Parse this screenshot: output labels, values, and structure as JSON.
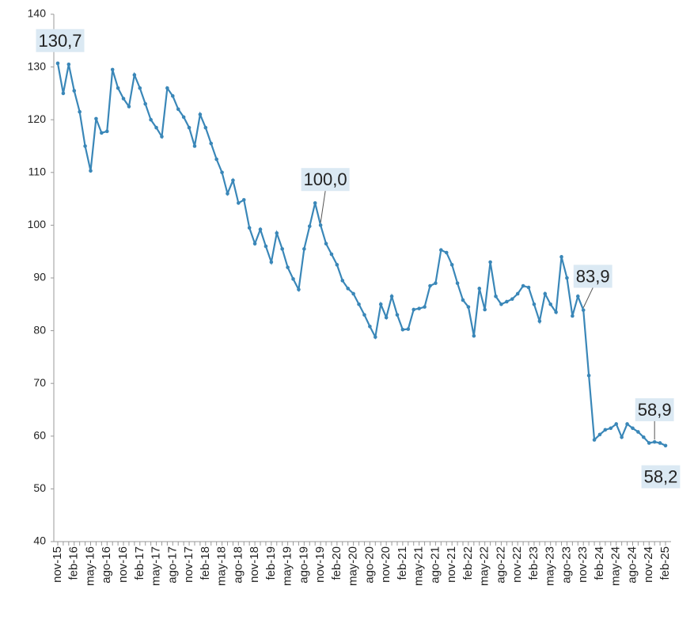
{
  "chart_data": {
    "type": "line",
    "categories": [
      "nov-15",
      null,
      null,
      "feb-16",
      null,
      null,
      "may-16",
      null,
      null,
      "ago-16",
      null,
      null,
      "nov-16",
      null,
      null,
      "feb-17",
      null,
      null,
      "may-17",
      null,
      null,
      "ago-17",
      null,
      null,
      "nov-17",
      null,
      null,
      "feb-18",
      null,
      null,
      "may-18",
      null,
      null,
      "ago-18",
      null,
      null,
      "nov-18",
      null,
      null,
      "feb-19",
      null,
      null,
      "may-19",
      null,
      null,
      "ago-19",
      null,
      null,
      "nov-19",
      null,
      null,
      "feb-20",
      null,
      null,
      "may-20",
      null,
      null,
      "ago-20",
      null,
      null,
      "nov-20",
      null,
      null,
      "feb-21",
      null,
      null,
      "may-21",
      null,
      null,
      "ago-21",
      null,
      null,
      "nov-21",
      null,
      null,
      "feb-22",
      null,
      null,
      "may-22",
      null,
      null,
      "ago-22",
      null,
      null,
      "nov-22",
      null,
      null,
      "feb-23",
      null,
      null,
      "may-23",
      null,
      null,
      "ago-23",
      null,
      null,
      "nov-23",
      null,
      null,
      "feb-24",
      null,
      null,
      "may-24",
      null,
      null,
      "ago-24",
      null,
      null,
      "nov-24",
      null,
      null,
      "feb-25"
    ],
    "series": [
      {
        "color": "#3a87b8",
        "values": [
          130.7,
          125,
          130.5,
          125.5,
          121.5,
          115,
          110.3,
          120.2,
          117.5,
          117.8,
          129.5,
          126,
          124,
          122.5,
          128.5,
          126,
          123,
          120,
          118.5,
          116.8,
          126,
          124.5,
          122,
          120.5,
          118.5,
          115,
          121,
          118.5,
          115.5,
          112.5,
          110,
          106,
          108.5,
          104.2,
          104.8,
          99.5,
          96.5,
          99.2,
          96,
          93,
          98.5,
          95.5,
          92,
          89.8,
          87.8,
          95.5,
          99.8,
          104.2,
          100.0,
          96.5,
          94.5,
          92.5,
          89.5,
          88,
          87,
          85,
          83,
          80.8,
          78.8,
          85,
          82.5,
          86.5,
          83,
          80.2,
          80.3,
          84,
          84.2,
          84.5,
          88.5,
          89,
          95.3,
          94.8,
          92.5,
          89,
          85.8,
          84.5,
          79,
          88,
          84,
          93,
          86.5,
          85,
          85.5,
          86,
          87,
          88.5,
          88.2,
          85,
          81.8,
          87,
          85,
          83.5,
          94,
          90,
          82.8,
          86.5,
          83.9,
          71.5,
          59.3,
          60.3,
          61.2,
          61.5,
          62.3,
          59.8,
          62.3,
          61.5,
          60.8,
          59.8,
          58.7,
          58.9,
          58.7,
          58.2
        ],
        "value_labels": [
          "130,7",
          null,
          null,
          null,
          null,
          null,
          null,
          null,
          null,
          null,
          null,
          null,
          null,
          null,
          null,
          null,
          null,
          null,
          null,
          null,
          null,
          null,
          null,
          null,
          null,
          null,
          null,
          null,
          null,
          null,
          null,
          null,
          null,
          null,
          null,
          null,
          null,
          null,
          null,
          null,
          null,
          null,
          null,
          null,
          null,
          null,
          null,
          null,
          "100,0",
          null,
          null,
          null,
          null,
          null,
          null,
          null,
          null,
          null,
          null,
          null,
          null,
          null,
          null,
          null,
          null,
          null,
          null,
          null,
          null,
          null,
          null,
          null,
          null,
          null,
          null,
          null,
          null,
          null,
          null,
          null,
          null,
          null,
          null,
          null,
          null,
          null,
          null,
          null,
          null,
          null,
          null,
          null,
          null,
          null,
          null,
          null,
          "83,9",
          null,
          null,
          null,
          null,
          null,
          null,
          null,
          null,
          null,
          null,
          null,
          null,
          "58,9",
          null,
          "58,2"
        ]
      }
    ],
    "ylim": [
      40,
      140
    ],
    "yticks": [
      40,
      50,
      60,
      70,
      80,
      90,
      100,
      110,
      120,
      130,
      140
    ],
    "grid": false
  }
}
